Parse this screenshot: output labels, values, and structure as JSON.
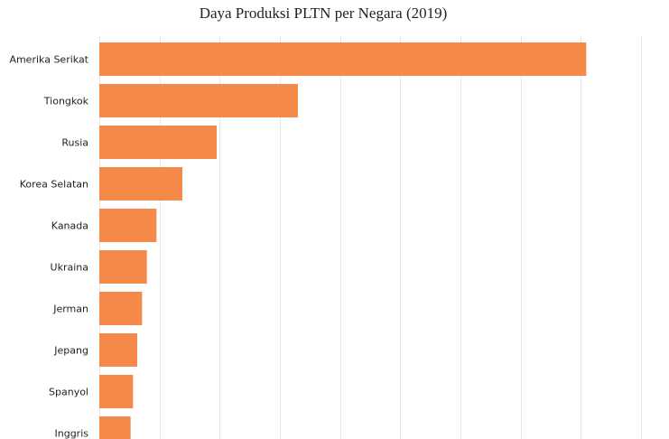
{
  "chart_data": {
    "type": "bar",
    "orientation": "horizontal",
    "title": "Daya Produksi PLTN per Negara (2019)",
    "xlabel": "",
    "ylabel": "",
    "categories": [
      "Amerika Serikat",
      "Tiongkok",
      "Rusia",
      "Korea Selatan",
      "Kanada",
      "Ukraina",
      "Jerman",
      "Jepang",
      "Spanyol",
      "Inggris"
    ],
    "values": [
      809,
      330,
      195,
      138,
      95,
      79,
      71,
      63,
      56,
      52
    ],
    "xlim": [
      0,
      900
    ],
    "gridlines": [
      0,
      100,
      200,
      300,
      400,
      500,
      600,
      700,
      800,
      900
    ],
    "grid": true,
    "legend": "none",
    "bar_color": "#f5894a"
  }
}
